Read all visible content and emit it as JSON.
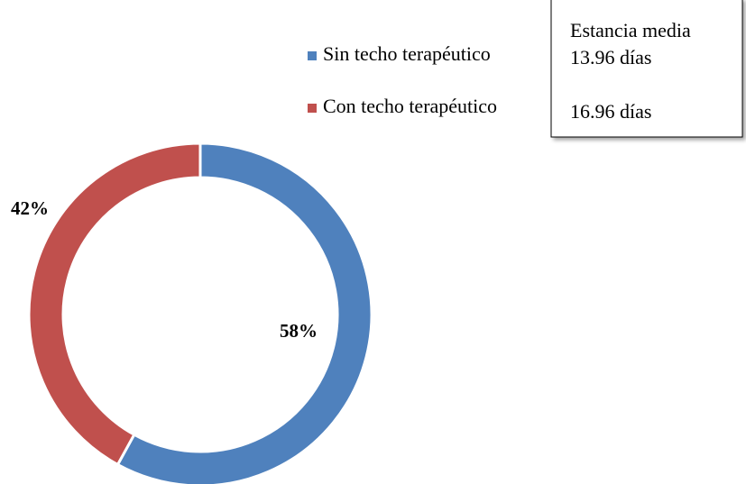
{
  "chart_data": {
    "type": "donut",
    "categories": [
      "Sin techo terapéutico",
      "Con techo terapéutico"
    ],
    "values": [
      58,
      42
    ],
    "value_labels": [
      "58%",
      "42%"
    ],
    "colors": [
      "#4f81bd",
      "#c0504d"
    ],
    "legend": "top-right",
    "annotations": [
      "Estancia media",
      "13.96 días",
      "16.96 días"
    ]
  }
}
